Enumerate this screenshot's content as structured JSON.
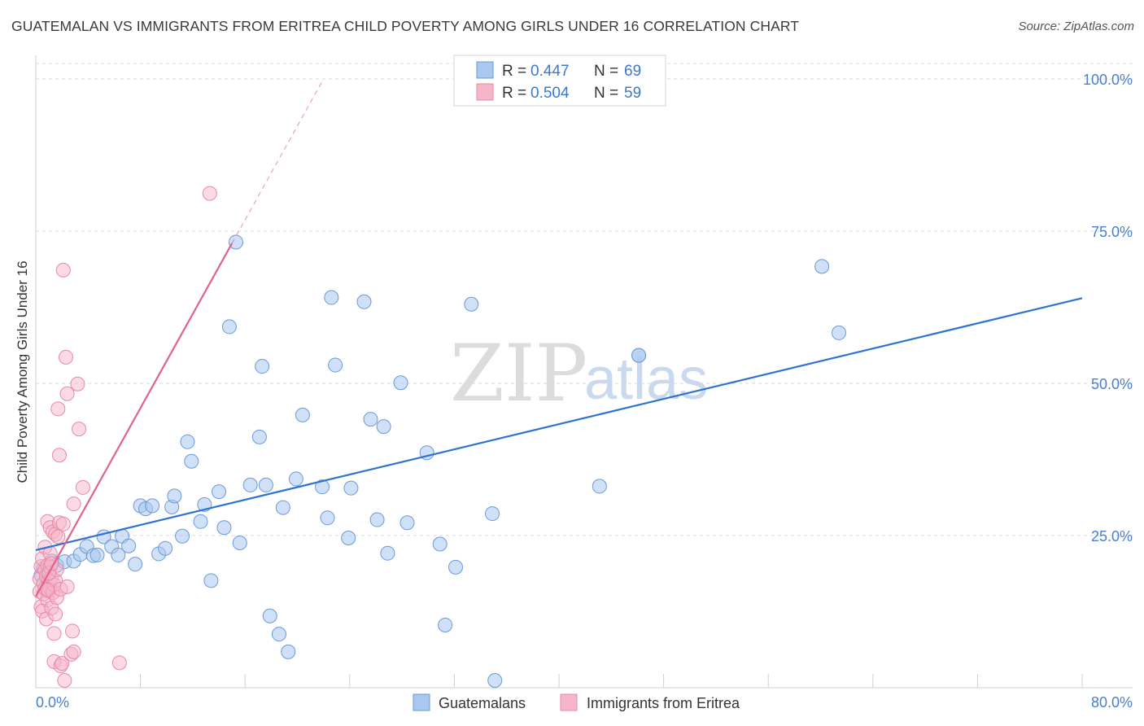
{
  "header": {
    "title": "GUATEMALAN VS IMMIGRANTS FROM ERITREA CHILD POVERTY AMONG GIRLS UNDER 16 CORRELATION CHART",
    "source": "Source: ZipAtlas.com"
  },
  "legend": {
    "rows": [
      {
        "r_label": "R =",
        "r_value": "0.447",
        "n_label": "N =",
        "n_value": "69"
      },
      {
        "r_label": "R =",
        "r_value": "0.504",
        "n_label": "N =",
        "n_value": "59"
      }
    ]
  },
  "watermark": {
    "zip": "ZIP",
    "atlas": "atlas"
  },
  "colors": {
    "blue_fill": "#a9c8f0",
    "blue_stroke": "#6a9ad8",
    "blue_line": "#2f73d0",
    "pink_fill": "#f6b6c9",
    "pink_stroke": "#e889a8",
    "pink_line": "#e0628e",
    "grid": "#d8d8d8",
    "axis_text": "#4a7fd0"
  },
  "chart_data": {
    "type": "scatter",
    "title": "GUATEMALAN VS IMMIGRANTS FROM ERITREA CHILD POVERTY AMONG GIRLS UNDER 16 CORRELATION CHART",
    "xlabel": "",
    "ylabel": "Child Poverty Among Girls Under 16",
    "xlim": [
      0,
      80
    ],
    "ylim": [
      0,
      105
    ],
    "x_tick_labels": {
      "left": "0.0%",
      "right": "80.0%"
    },
    "y_ticks": [
      25,
      50,
      75,
      100
    ],
    "y_tick_labels": [
      "25.0%",
      "50.0%",
      "75.0%",
      "100.0%"
    ],
    "grid": true,
    "series": [
      {
        "name": "Guatemalans",
        "color": "#a9c8f0",
        "trendline": {
          "x": [
            0,
            80
          ],
          "y": [
            22.6,
            64.0
          ],
          "style": "solid"
        },
        "points": [
          [
            0.4,
            18.5
          ],
          [
            0.6,
            19.6
          ],
          [
            1.2,
            20.8
          ],
          [
            1.6,
            20.1
          ],
          [
            2.2,
            20.7
          ],
          [
            2.9,
            20.8
          ],
          [
            3.4,
            21.9
          ],
          [
            3.9,
            23.2
          ],
          [
            4.4,
            21.7
          ],
          [
            4.7,
            21.8
          ],
          [
            5.2,
            24.8
          ],
          [
            5.8,
            23.2
          ],
          [
            6.3,
            21.8
          ],
          [
            6.6,
            24.9
          ],
          [
            7.1,
            23.3
          ],
          [
            7.6,
            20.3
          ],
          [
            8.0,
            29.9
          ],
          [
            8.4,
            29.4
          ],
          [
            8.9,
            29.9
          ],
          [
            9.4,
            22.0
          ],
          [
            9.9,
            22.9
          ],
          [
            10.4,
            29.7
          ],
          [
            10.6,
            31.5
          ],
          [
            11.2,
            24.9
          ],
          [
            11.6,
            40.4
          ],
          [
            11.9,
            37.2
          ],
          [
            12.6,
            27.3
          ],
          [
            12.9,
            30.1
          ],
          [
            13.4,
            17.6
          ],
          [
            14.0,
            32.2
          ],
          [
            14.4,
            26.3
          ],
          [
            14.8,
            59.3
          ],
          [
            15.3,
            73.2
          ],
          [
            15.6,
            23.8
          ],
          [
            16.4,
            33.3
          ],
          [
            17.1,
            41.2
          ],
          [
            17.3,
            52.8
          ],
          [
            17.6,
            33.3
          ],
          [
            17.9,
            11.8
          ],
          [
            18.6,
            8.8
          ],
          [
            18.9,
            29.6
          ],
          [
            19.3,
            5.9
          ],
          [
            19.9,
            34.3
          ],
          [
            20.4,
            44.8
          ],
          [
            21.9,
            33.0
          ],
          [
            22.3,
            27.9
          ],
          [
            22.6,
            64.1
          ],
          [
            22.9,
            53.0
          ],
          [
            23.9,
            24.6
          ],
          [
            24.1,
            32.8
          ],
          [
            25.1,
            63.4
          ],
          [
            25.6,
            44.1
          ],
          [
            26.1,
            27.6
          ],
          [
            26.6,
            42.9
          ],
          [
            26.9,
            22.1
          ],
          [
            27.9,
            50.1
          ],
          [
            28.4,
            27.1
          ],
          [
            29.9,
            38.6
          ],
          [
            30.9,
            23.6
          ],
          [
            31.3,
            10.3
          ],
          [
            32.1,
            19.8
          ],
          [
            33.3,
            63.0
          ],
          [
            34.9,
            28.6
          ],
          [
            35.1,
            1.2
          ],
          [
            43.1,
            33.1
          ],
          [
            46.1,
            54.6
          ],
          [
            60.1,
            69.2
          ],
          [
            61.4,
            58.3
          ],
          [
            46.1,
            54.6
          ]
        ]
      },
      {
        "name": "Immigrants from Eritrea",
        "color": "#f6b6c9",
        "trendline": {
          "x": [
            0,
            15
          ],
          "y": [
            15.0,
            73.0
          ],
          "style": "solid",
          "dashed_extension_to": [
            22,
            100
          ]
        },
        "points": [
          [
            0.3,
            15.8
          ],
          [
            0.3,
            17.9
          ],
          [
            0.4,
            13.3
          ],
          [
            0.4,
            19.9
          ],
          [
            0.5,
            12.6
          ],
          [
            0.5,
            21.2
          ],
          [
            0.6,
            15.4
          ],
          [
            0.6,
            17.1
          ],
          [
            0.7,
            16.3
          ],
          [
            0.7,
            19.3
          ],
          [
            0.7,
            23.1
          ],
          [
            0.8,
            11.3
          ],
          [
            0.8,
            18.3
          ],
          [
            0.9,
            14.4
          ],
          [
            0.9,
            20.1
          ],
          [
            0.9,
            27.3
          ],
          [
            1.0,
            15.9
          ],
          [
            1.0,
            17.6
          ],
          [
            1.1,
            16.4
          ],
          [
            1.1,
            19.9
          ],
          [
            1.1,
            22.1
          ],
          [
            1.1,
            26.3
          ],
          [
            1.2,
            13.1
          ],
          [
            1.2,
            18.1
          ],
          [
            1.3,
            15.6
          ],
          [
            1.3,
            25.6
          ],
          [
            1.4,
            4.3
          ],
          [
            1.4,
            8.9
          ],
          [
            1.4,
            16.9
          ],
          [
            1.5,
            12.1
          ],
          [
            1.5,
            17.6
          ],
          [
            1.5,
            25.2
          ],
          [
            1.6,
            14.8
          ],
          [
            1.6,
            19.4
          ],
          [
            1.7,
            45.8
          ],
          [
            1.8,
            38.2
          ],
          [
            1.7,
            24.8
          ],
          [
            1.8,
            27.1
          ],
          [
            1.9,
            3.6
          ],
          [
            1.9,
            16.2
          ],
          [
            2.0,
            4.0
          ],
          [
            2.1,
            68.6
          ],
          [
            2.1,
            26.9
          ],
          [
            2.2,
            1.2
          ],
          [
            2.3,
            54.3
          ],
          [
            2.4,
            48.3
          ],
          [
            2.4,
            16.6
          ],
          [
            2.7,
            5.5
          ],
          [
            2.8,
            9.3
          ],
          [
            2.9,
            5.9
          ],
          [
            2.9,
            30.2
          ],
          [
            3.2,
            49.9
          ],
          [
            3.3,
            42.5
          ],
          [
            3.6,
            32.9
          ],
          [
            6.4,
            4.1
          ],
          [
            13.3,
            81.2
          ],
          [
            1.0,
            18.8
          ],
          [
            1.2,
            20.4
          ],
          [
            0.9,
            16.1
          ]
        ]
      }
    ]
  }
}
